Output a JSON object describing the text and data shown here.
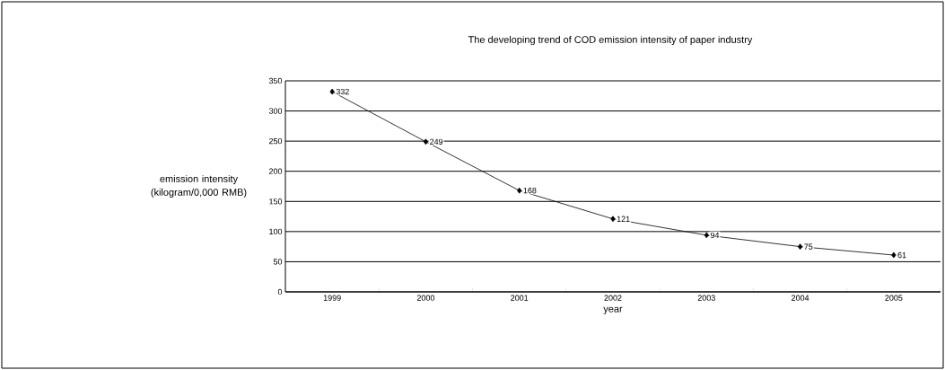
{
  "chart_data": {
    "type": "line",
    "title": "The developing trend of COD emission intensity of paper industry",
    "xlabel": "year",
    "ylabel": "emission intensity (kilogram/0,000 RMB)",
    "categories": [
      "1999",
      "2000",
      "2001",
      "2002",
      "2003",
      "2004",
      "2005"
    ],
    "values": [
      332,
      249,
      168,
      121,
      94,
      75,
      61
    ],
    "color": "#000000",
    "ylim": [
      0,
      350
    ],
    "yticks": [
      0,
      50,
      100,
      150,
      200,
      250,
      300,
      350
    ],
    "grid": "y",
    "marker": "diamond",
    "line_style": "solid",
    "data_labels": true
  }
}
